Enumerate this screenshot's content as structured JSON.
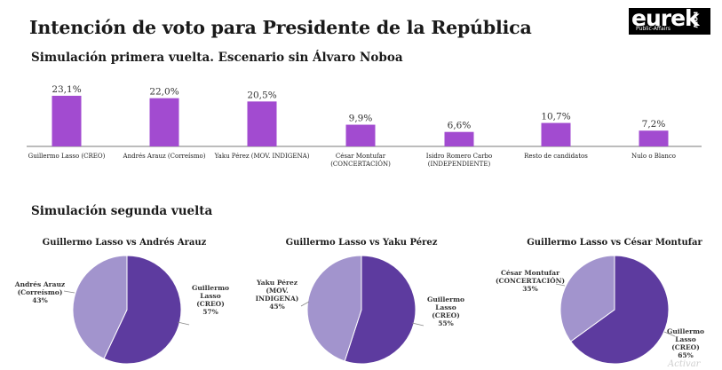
{
  "header": {
    "title": "Intención de voto para Presidente de la República",
    "logo": {
      "brand": "eurek",
      "now": "now",
      "tagline": "Public-Affairs"
    }
  },
  "chart_data": [
    {
      "type": "bar",
      "title": "Simulación primera vuelta. Escenario sin Álvaro Noboa",
      "categories": [
        [
          "Guillermo Lasso (CREO)"
        ],
        [
          "Andrés Arauz (Correísmo)"
        ],
        [
          "Yaku Pérez (MOV. INDIGENA)"
        ],
        [
          "César Montufar",
          "(CONCERTACIÓN)"
        ],
        [
          "Isidro Romero Carbo",
          "(INDEPENDIENTE)"
        ],
        [
          "Resto de candidatos"
        ],
        [
          "Nulo o Blanco"
        ]
      ],
      "values": [
        23.1,
        22.0,
        20.5,
        9.9,
        6.6,
        10.7,
        7.2
      ],
      "data_labels": [
        "23,1%",
        "22,0%",
        "20,5%",
        "9,9%",
        "6,6%",
        "10,7%",
        "7,2%"
      ],
      "color": "#a24bd0"
    },
    {
      "type": "pie",
      "section_title": "Simulación segunda vuelta",
      "title": "Guillermo Lasso vs Andrés Arauz",
      "slices": [
        {
          "label": [
            "Guillermo",
            "Lasso",
            "(CREO)",
            "57%"
          ],
          "value": 57,
          "color": "#5d3b9f"
        },
        {
          "label": [
            "Andrés Arauz",
            "(Correísmo)",
            "43%"
          ],
          "value": 43,
          "color": "#a294cd"
        }
      ]
    },
    {
      "type": "pie",
      "title": "Guillermo Lasso vs Yaku Pérez",
      "slices": [
        {
          "label": [
            "Guillermo",
            "Lasso",
            "(CREO)",
            "55%"
          ],
          "value": 55,
          "color": "#5d3b9f"
        },
        {
          "label": [
            "Yaku Pérez",
            "(MOV.",
            "INDIGENA)",
            "45%"
          ],
          "value": 45,
          "color": "#a294cd"
        }
      ]
    },
    {
      "type": "pie",
      "title": "Guillermo Lasso vs César Montufar",
      "slices": [
        {
          "label": [
            "Guillermo",
            "Lasso",
            "(CREO)",
            "65%"
          ],
          "value": 65,
          "color": "#5d3b9f"
        },
        {
          "label": [
            "César Montufar",
            "(CONCERTACIÓN)",
            "35%"
          ],
          "value": 35,
          "color": "#a294cd"
        }
      ]
    }
  ]
}
